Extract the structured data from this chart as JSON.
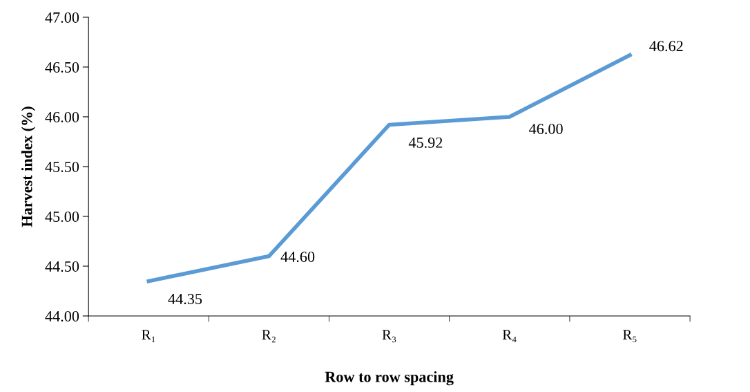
{
  "chart_data": {
    "type": "line",
    "xlabel": "Row to row spacing",
    "ylabel": "Harvest index (%)",
    "categories": [
      "R₁",
      "R₂",
      "R₃",
      "R₄",
      "R₅"
    ],
    "series": [
      {
        "color": "#5b9bd5",
        "values": [
          44.35,
          44.6,
          45.92,
          46.0,
          46.62
        ],
        "value_labels": [
          "44.35",
          "44.60",
          "45.92",
          "46.00",
          "46.62"
        ]
      }
    ],
    "ylim": [
      44,
      47
    ],
    "yticks": [
      {
        "value": 44,
        "label": "44.00"
      },
      {
        "value": 44.5,
        "label": "44.50"
      },
      {
        "value": 45,
        "label": "45.00"
      },
      {
        "value": 45.5,
        "label": "45.50"
      },
      {
        "value": 46,
        "label": "46.00"
      },
      {
        "value": 46.5,
        "label": "46.50"
      },
      {
        "value": 47,
        "label": "47.00"
      }
    ],
    "grid": false,
    "legend": false,
    "marker": "none",
    "line_style": "solid"
  }
}
